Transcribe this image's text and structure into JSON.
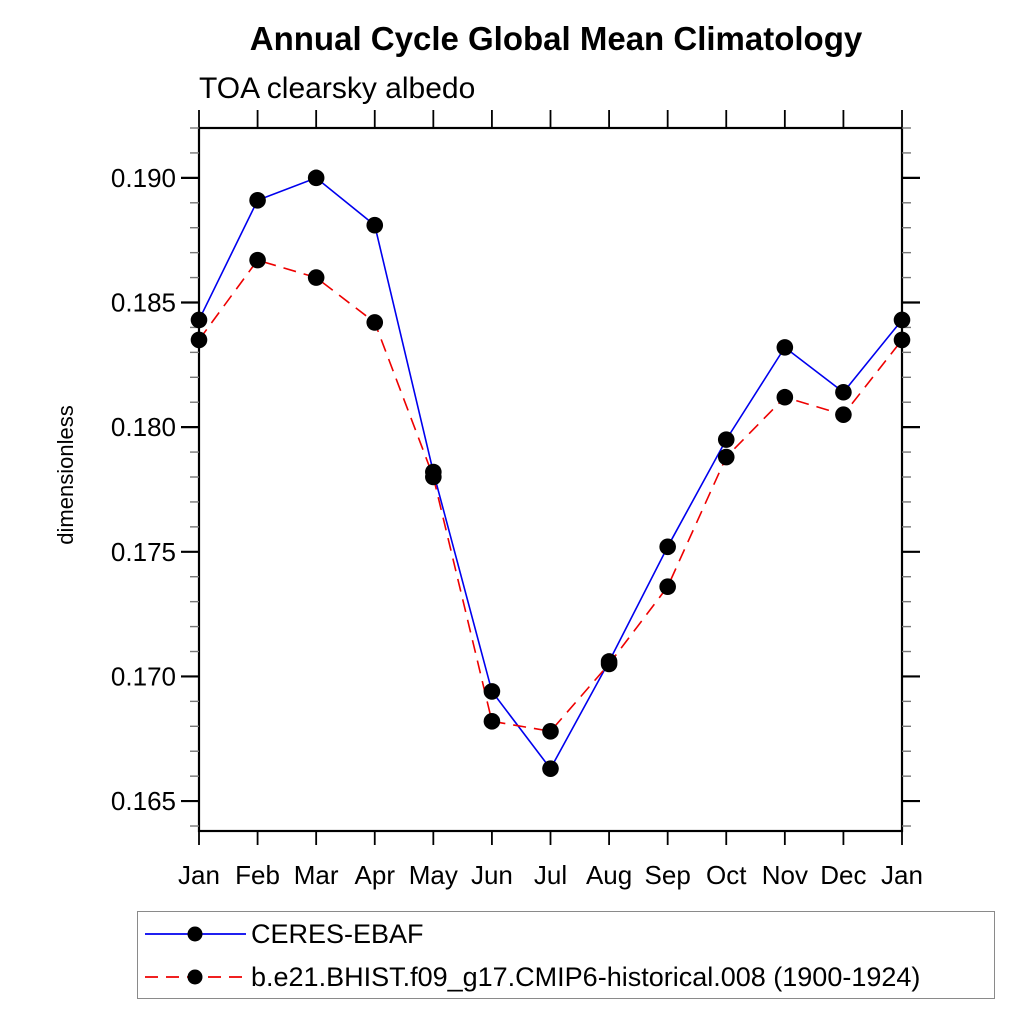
{
  "title": "Annual Cycle Global Mean Climatology",
  "subtitle": "TOA clearsky albedo",
  "chart_data": {
    "type": "line",
    "categories": [
      "Jan",
      "Feb",
      "Mar",
      "Apr",
      "May",
      "Jun",
      "Jul",
      "Aug",
      "Sep",
      "Oct",
      "Nov",
      "Dec",
      "Jan"
    ],
    "series": [
      {
        "name": "CERES-EBAF",
        "color": "#0000ee",
        "line_style": "solid",
        "marker": "filled-circle",
        "marker_color": "#000000",
        "values": [
          0.1843,
          0.1891,
          0.19,
          0.1881,
          0.1782,
          0.1694,
          0.1663,
          0.1706,
          0.1752,
          0.1795,
          0.1832,
          0.1814,
          0.1843
        ]
      },
      {
        "name": "b.e21.BHIST.f09_g17.CMIP6-historical.008 (1900-1924)",
        "color": "#ee0000",
        "line_style": "dashed",
        "marker": "filled-circle",
        "marker_color": "#000000",
        "values": [
          0.1835,
          0.1867,
          0.186,
          0.1842,
          0.178,
          0.1682,
          0.1678,
          0.1705,
          0.1736,
          0.1788,
          0.1812,
          0.1805,
          0.1835
        ]
      }
    ],
    "xlabel": "",
    "ylabel": "dimensionless",
    "ylim": [
      0.1638,
      0.192
    ],
    "y_major_ticks": [
      0.165,
      0.17,
      0.175,
      0.18,
      0.185,
      0.19
    ],
    "y_tick_labels": [
      "0.165",
      "0.170",
      "0.175",
      "0.180",
      "0.185",
      "0.190"
    ],
    "y_minor_step": 0.001,
    "grid": false,
    "legend_position": "bottom-left"
  }
}
